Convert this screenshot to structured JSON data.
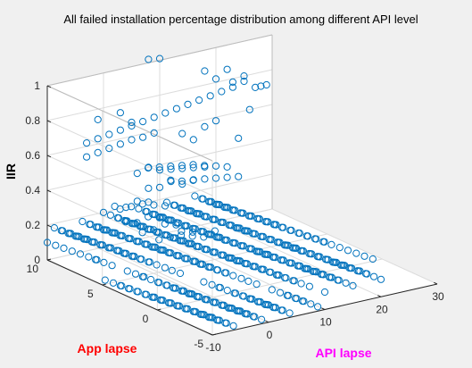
{
  "chart_data": {
    "type": "scatter",
    "title": "All failed installation percentage distribution among different API level",
    "xlabel": "API lapse",
    "ylabel": "App lapse",
    "zlabel": "IIR",
    "xlim": [
      -10,
      30
    ],
    "ylim": [
      -5,
      10
    ],
    "zlim": [
      0,
      1
    ],
    "xticks": [
      "-10",
      "0",
      "10",
      "20",
      "30"
    ],
    "yticks": [
      "-5",
      "0",
      "5",
      "10"
    ],
    "zticks": [
      "0",
      "0.2",
      "0.4",
      "0.6",
      "0.8",
      "1"
    ],
    "grid": true,
    "colors": {
      "marker": "#0072bd",
      "xlabel": "#ff00ff",
      "ylabel": "#ff0000",
      "zlabel": "#000000"
    },
    "dense_region": {
      "x_range": [
        -10,
        20
      ],
      "y_range": [
        -5,
        10
      ],
      "z_range": [
        0,
        0.1
      ]
    },
    "points": [
      [
        0,
        10,
        0.2
      ],
      [
        2,
        10,
        0.22
      ],
      [
        4,
        10,
        0.2
      ],
      [
        6,
        10,
        0.22
      ],
      [
        8,
        10,
        0.2
      ],
      [
        1,
        9,
        0.24
      ],
      [
        3,
        9,
        0.24
      ],
      [
        5,
        9,
        0.24
      ],
      [
        7,
        9,
        0.22
      ],
      [
        9,
        9,
        0.2
      ],
      [
        2,
        9,
        0.16
      ],
      [
        4,
        9,
        0.14
      ],
      [
        6,
        9,
        0.16
      ],
      [
        8,
        9,
        0.14
      ],
      [
        3,
        8,
        0.12
      ],
      [
        5,
        8,
        0.12
      ],
      [
        7,
        8,
        0.14
      ],
      [
        9,
        8,
        0.12
      ],
      [
        4,
        7,
        0.1
      ],
      [
        6,
        7,
        0.1
      ],
      [
        8,
        7,
        0.12
      ],
      [
        10,
        7,
        0.1
      ],
      [
        6,
        6,
        0.14
      ],
      [
        8,
        6,
        0.12
      ],
      [
        10,
        6,
        0.1
      ],
      [
        12,
        6,
        0.12
      ],
      [
        -3,
        10,
        0.62
      ],
      [
        -1,
        10,
        0.63
      ],
      [
        1,
        10,
        0.64
      ],
      [
        3,
        10,
        0.65
      ],
      [
        5,
        10,
        0.66
      ],
      [
        7,
        10,
        0.67
      ],
      [
        9,
        10,
        0.68
      ],
      [
        11,
        10,
        0.69
      ],
      [
        13,
        10,
        0.7
      ],
      [
        15,
        10,
        0.71
      ],
      [
        17,
        10,
        0.72
      ],
      [
        19,
        10,
        0.73
      ],
      [
        21,
        10,
        0.74
      ],
      [
        23,
        10,
        0.75
      ],
      [
        25,
        10,
        0.77
      ],
      [
        -3,
        10,
        0.54
      ],
      [
        -1,
        10,
        0.55
      ],
      [
        1,
        10,
        0.56
      ],
      [
        3,
        10,
        0.57
      ],
      [
        5,
        10,
        0.58
      ],
      [
        7,
        10,
        0.58
      ],
      [
        9,
        10,
        0.59
      ],
      [
        -1,
        10,
        0.74
      ],
      [
        3,
        10,
        0.75
      ],
      [
        5,
        10,
        0.68
      ],
      [
        6,
        10,
        0.38
      ],
      [
        8,
        10,
        0.4
      ],
      [
        10,
        10,
        0.37
      ],
      [
        12,
        10,
        0.36
      ],
      [
        14,
        10,
        0.35
      ],
      [
        16,
        10,
        0.34
      ],
      [
        18,
        10,
        0.33
      ],
      [
        20,
        10,
        0.32
      ],
      [
        22,
        10,
        0.3
      ],
      [
        6,
        9,
        0.44
      ],
      [
        8,
        9,
        0.43
      ],
      [
        10,
        9,
        0.42
      ],
      [
        12,
        9,
        0.41
      ],
      [
        14,
        9,
        0.4
      ],
      [
        16,
        9,
        0.38
      ],
      [
        8,
        10,
        0.28
      ],
      [
        10,
        10,
        0.27
      ],
      [
        12,
        10,
        0.29
      ],
      [
        14,
        10,
        0.26
      ],
      [
        16,
        10,
        0.27
      ],
      [
        18,
        10,
        0.26
      ],
      [
        20,
        10,
        0.25
      ],
      [
        22,
        10,
        0.24
      ],
      [
        24,
        10,
        0.23
      ],
      [
        10,
        9,
        0.34
      ],
      [
        12,
        9,
        0.32
      ],
      [
        14,
        9,
        0.31
      ],
      [
        8,
        10,
        1.02
      ],
      [
        10,
        10,
        1.01
      ],
      [
        18,
        10,
        0.88
      ],
      [
        20,
        10,
        0.82
      ],
      [
        22,
        10,
        0.86
      ],
      [
        23,
        10,
        0.78
      ],
      [
        25,
        10,
        0.8
      ],
      [
        27,
        10,
        0.72
      ],
      [
        28,
        10,
        0.72
      ],
      [
        29,
        10,
        0.72
      ],
      [
        26,
        10,
        0.6
      ],
      [
        24,
        10,
        0.45
      ],
      [
        16,
        10,
        0.5
      ],
      [
        14,
        10,
        0.55
      ],
      [
        20,
        10,
        0.58
      ],
      [
        18,
        10,
        0.56
      ]
    ]
  }
}
